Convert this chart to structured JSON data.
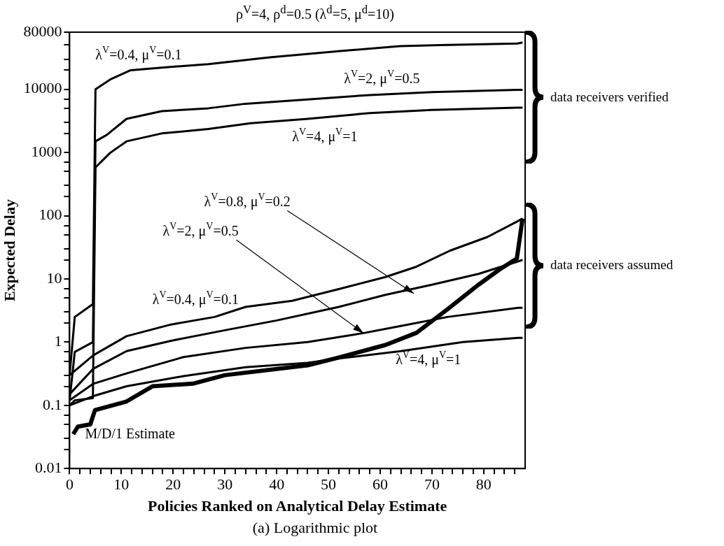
{
  "chart_data": {
    "type": "line",
    "title": "ρ$^{V}$=4, ρ$^{d}$=0.5 (λ$^{d}$=5, μ$^{d}$=10)",
    "xlabel": "Policies Ranked on Analytical Delay Estimate",
    "ylabel": "Expected Delay",
    "annotations": [
      "data receivers verified",
      "data receivers assumed",
      "(a)  Logarithmic plot"
    ],
    "log": "y",
    "legend": false,
    "marker": "none",
    "line_style": "solid",
    "xlim": [
      0,
      88
    ],
    "xticks": [
      0,
      {
        "value": 2,
        "label": null
      },
      {
        "value": 4,
        "label": null
      },
      {
        "value": 6,
        "label": null
      },
      {
        "value": 8,
        "label": null
      },
      10,
      {
        "value": 12,
        "label": null
      },
      {
        "value": 14,
        "label": null
      },
      {
        "value": 16,
        "label": null
      },
      {
        "value": 18,
        "label": null
      },
      20,
      {
        "value": 22,
        "label": null
      },
      {
        "value": 24,
        "label": null
      },
      {
        "value": 26,
        "label": null
      },
      {
        "value": 28,
        "label": null
      },
      30,
      {
        "value": 32,
        "label": null
      },
      {
        "value": 34,
        "label": null
      },
      {
        "value": 36,
        "label": null
      },
      {
        "value": 38,
        "label": null
      },
      40,
      {
        "value": 42,
        "label": null
      },
      {
        "value": 44,
        "label": null
      },
      {
        "value": 46,
        "label": null
      },
      {
        "value": 48,
        "label": null
      },
      50,
      {
        "value": 52,
        "label": null
      },
      {
        "value": 54,
        "label": null
      },
      {
        "value": 56,
        "label": null
      },
      {
        "value": 58,
        "label": null
      },
      60,
      {
        "value": 62,
        "label": null
      },
      {
        "value": 64,
        "label": null
      },
      {
        "value": 66,
        "label": null
      },
      {
        "value": 68,
        "label": null
      },
      70,
      {
        "value": 72,
        "label": null
      },
      {
        "value": 74,
        "label": null
      },
      {
        "value": 76,
        "label": null
      },
      {
        "value": 78,
        "label": null
      },
      80,
      {
        "value": 82,
        "label": null
      },
      {
        "value": 84,
        "label": null
      },
      {
        "value": 86,
        "label": null
      }
    ],
    "ylim": [
      0.01,
      80000
    ],
    "yticks": [
      0.01,
      {
        "value": 0.02,
        "label": null
      },
      {
        "value": 0.03,
        "label": null
      },
      {
        "value": 0.05,
        "label": null
      },
      {
        "value": 0.07,
        "label": null
      },
      0.1,
      {
        "value": 0.2,
        "label": null
      },
      {
        "value": 0.3,
        "label": null
      },
      {
        "value": 0.5,
        "label": null
      },
      {
        "value": 0.7,
        "label": null
      },
      1,
      {
        "value": 2,
        "label": null
      },
      {
        "value": 3,
        "label": null
      },
      {
        "value": 5,
        "label": null
      },
      {
        "value": 7,
        "label": null
      },
      10,
      {
        "value": 20,
        "label": null
      },
      {
        "value": 30,
        "label": null
      },
      {
        "value": 50,
        "label": null
      },
      {
        "value": 70,
        "label": null
      },
      100,
      {
        "value": 200,
        "label": null
      },
      {
        "value": 300,
        "label": null
      },
      {
        "value": 500,
        "label": null
      },
      {
        "value": 700,
        "label": null
      },
      1000,
      {
        "value": 2000,
        "label": null
      },
      {
        "value": 3000,
        "label": null
      },
      {
        "value": 5000,
        "label": null
      },
      {
        "value": 7000,
        "label": null
      },
      10000,
      {
        "value": 20000,
        "label": null
      },
      {
        "value": 30000,
        "label": null
      },
      {
        "value": 50000,
        "label": null
      },
      80000
    ],
    "series": [
      {
        "name": "λ$^{V}$=0.4, μ$^{V}$=0.1",
        "color": "#000000",
        "x": [
          0,
          1,
          4.5,
          5,
          8,
          11.8,
          17.8,
          26.8,
          38.7,
          51.9,
          63.8,
          71.6,
          86.5,
          87.5
        ],
        "values": [
          0.3,
          2.5,
          4,
          10000,
          14500,
          20000,
          22000,
          25000,
          32000,
          40000,
          48000,
          50000,
          53000,
          55000
        ]
      },
      {
        "name": "λ$^{V}$=2, μ$^{V}$=0.5",
        "color": "#000000",
        "x": [
          0,
          1,
          4.5,
          5,
          7.2,
          11,
          17.8,
          26.8,
          34,
          46,
          58,
          70,
          86.5,
          87.5
        ],
        "values": [
          0.12,
          0.7,
          1,
          1500,
          1900,
          3400,
          4500,
          5000,
          5900,
          6900,
          8100,
          9000,
          9800,
          9800
        ]
      },
      {
        "name": "λ$^{V}$=4, μ$^{V}$=1",
        "color": "#000000",
        "x": [
          0,
          1,
          4.5,
          5,
          7.8,
          11,
          17.8,
          26.8,
          35,
          46,
          58,
          70,
          86.5,
          87.5
        ],
        "values": [
          0.1,
          0.12,
          0.13,
          580,
          980,
          1500,
          2000,
          2350,
          2900,
          3400,
          4200,
          4700,
          5100,
          5100
        ]
      },
      {
        "name": "λ$^{V}$=0.4, μ$^{V}$=0.1",
        "color": "#000000",
        "x": [
          0,
          4.6,
          11,
          19.6,
          28,
          34,
          43,
          52,
          61,
          67,
          73.5,
          80.7,
          86.7,
          87.5
        ],
        "values": [
          0.3,
          0.62,
          1.24,
          1.9,
          2.5,
          3.6,
          4.5,
          6.9,
          10.7,
          15.6,
          28,
          46,
          83,
          90
        ]
      },
      {
        "name": "λ$^{V}$=0.8, μ$^{V}$=0.2",
        "color": "#000000",
        "x": [
          0,
          4.6,
          11,
          19.6,
          30,
          40,
          52,
          61,
          70,
          79,
          86.7,
          87.5
        ],
        "values": [
          0.15,
          0.38,
          0.72,
          1.05,
          1.54,
          2.2,
          3.6,
          5.6,
          8.1,
          12,
          19,
          20
        ]
      },
      {
        "name": "λ$^{V}$=2, μ$^{V}$=0.5",
        "color": "#000000",
        "x": [
          0,
          4.6,
          11,
          22,
          34,
          46,
          57,
          64,
          73,
          86.7,
          87.5
        ],
        "values": [
          0.12,
          0.22,
          0.32,
          0.58,
          0.81,
          1,
          1.4,
          1.8,
          2.5,
          3.5,
          3.5
        ]
      },
      {
        "name": "λ$^{V}$=4, μ$^{V}$=1",
        "color": "#000000",
        "x": [
          0,
          4.6,
          11,
          22,
          34,
          46,
          52,
          64,
          76,
          86.7,
          87.5
        ],
        "values": [
          0.1,
          0.14,
          0.2,
          0.29,
          0.4,
          0.47,
          0.55,
          0.72,
          1,
          1.17,
          1.17
        ]
      },
      {
        "name": "M/D/1 Estimate",
        "color": "#000000",
        "x": [
          0.7,
          1.6,
          4,
          4.9,
          11,
          16,
          23.8,
          30,
          46,
          52,
          61,
          67,
          73,
          79,
          83,
          86.4,
          87.5
        ],
        "values": [
          0.035,
          0.046,
          0.05,
          0.084,
          0.115,
          0.2,
          0.22,
          0.3,
          0.43,
          0.57,
          0.9,
          1.4,
          3.3,
          8.1,
          14,
          21,
          90
        ]
      }
    ]
  }
}
